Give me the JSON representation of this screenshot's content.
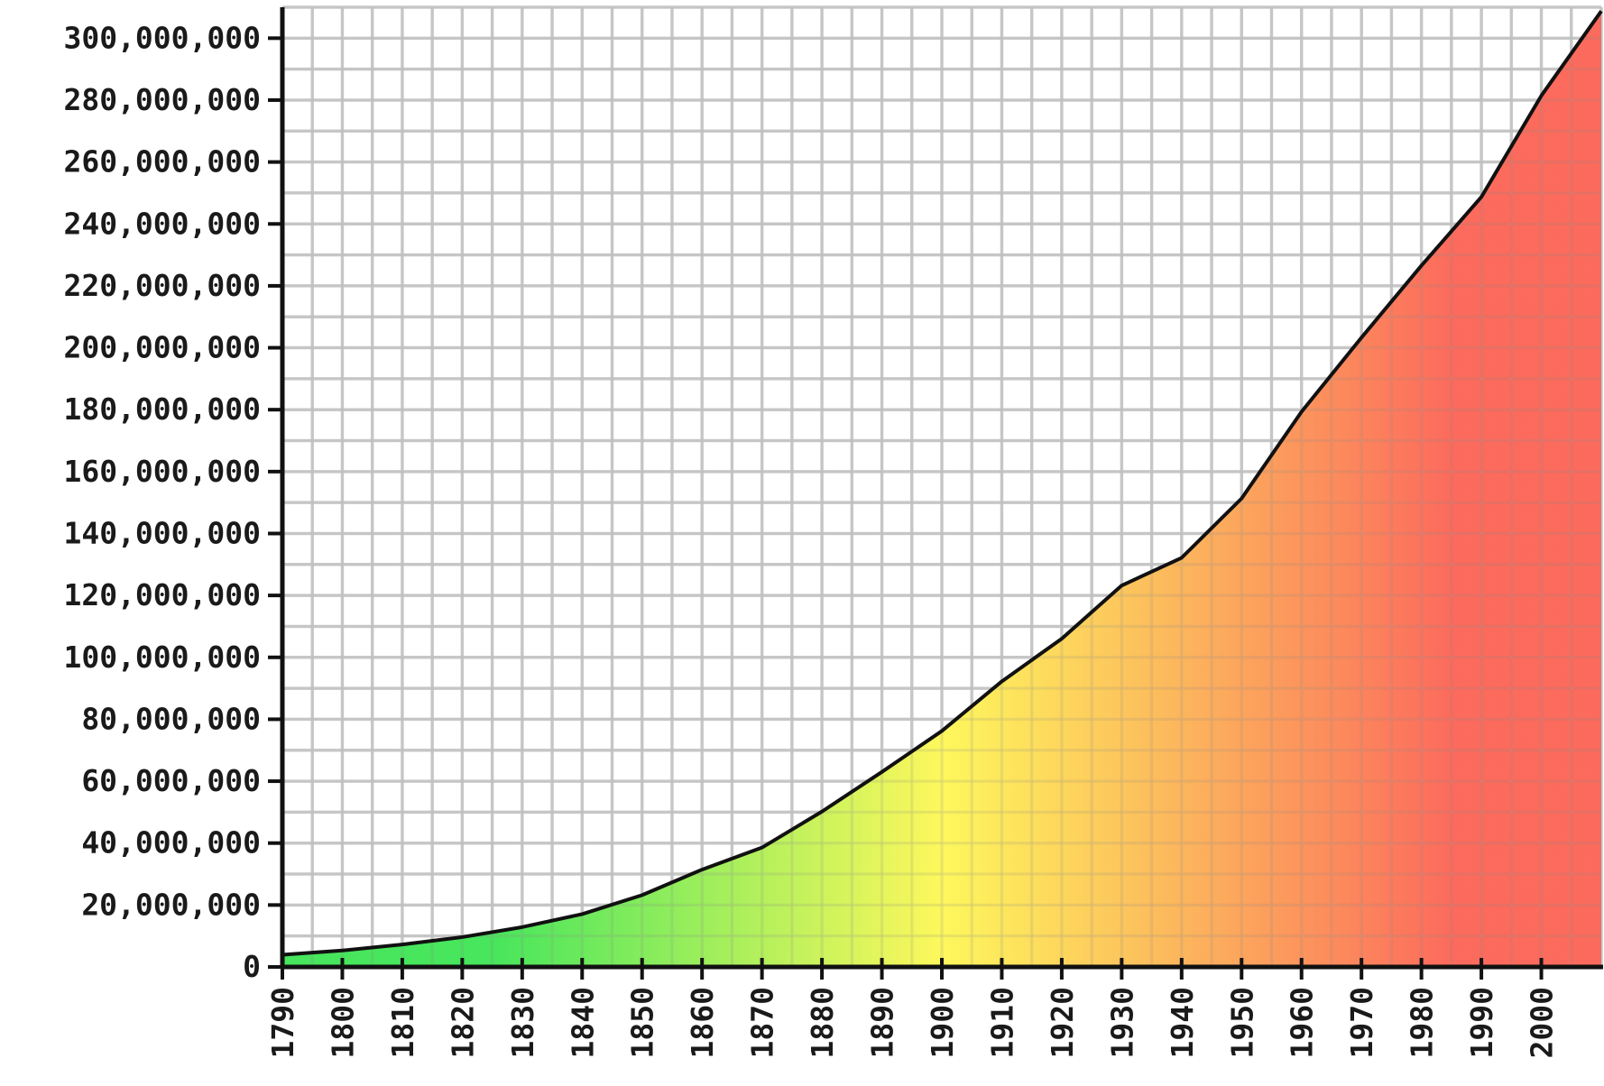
{
  "chart_data": {
    "type": "area",
    "title": "",
    "xlabel": "",
    "ylabel": "",
    "x": [
      1790,
      1800,
      1810,
      1820,
      1830,
      1840,
      1850,
      1860,
      1870,
      1880,
      1890,
      1900,
      1910,
      1920,
      1930,
      1940,
      1950,
      1960,
      1970,
      1980,
      1990,
      2000,
      2010
    ],
    "values": [
      3929214,
      5308483,
      7239881,
      9638453,
      12866020,
      17069453,
      23191876,
      31443321,
      38558371,
      50189209,
      62979766,
      76212168,
      92228496,
      106021537,
      123202624,
      132164569,
      151325798,
      179323175,
      203302031,
      226545805,
      248709873,
      281421906,
      308745538
    ],
    "xlim": [
      1790,
      2010
    ],
    "ylim": [
      0,
      310000000
    ],
    "x_ticks": [
      "1790",
      "1800",
      "1810",
      "1820",
      "1830",
      "1840",
      "1850",
      "1860",
      "1870",
      "1880",
      "1890",
      "1900",
      "1910",
      "1920",
      "1930",
      "1940",
      "1950",
      "1960",
      "1970",
      "1980",
      "1990",
      "2000"
    ],
    "y_ticks": [
      "0",
      "20,000,000",
      "40,000,000",
      "60,000,000",
      "80,000,000",
      "100,000,000",
      "120,000,000",
      "140,000,000",
      "160,000,000",
      "180,000,000",
      "200,000,000",
      "220,000,000",
      "240,000,000",
      "260,000,000",
      "280,000,000",
      "300,000,000"
    ],
    "grid": true,
    "legend": "none",
    "fill_gradient": [
      "#33e34a",
      "#fdf74b",
      "#fb5b4b"
    ],
    "line_color": "#111111"
  }
}
